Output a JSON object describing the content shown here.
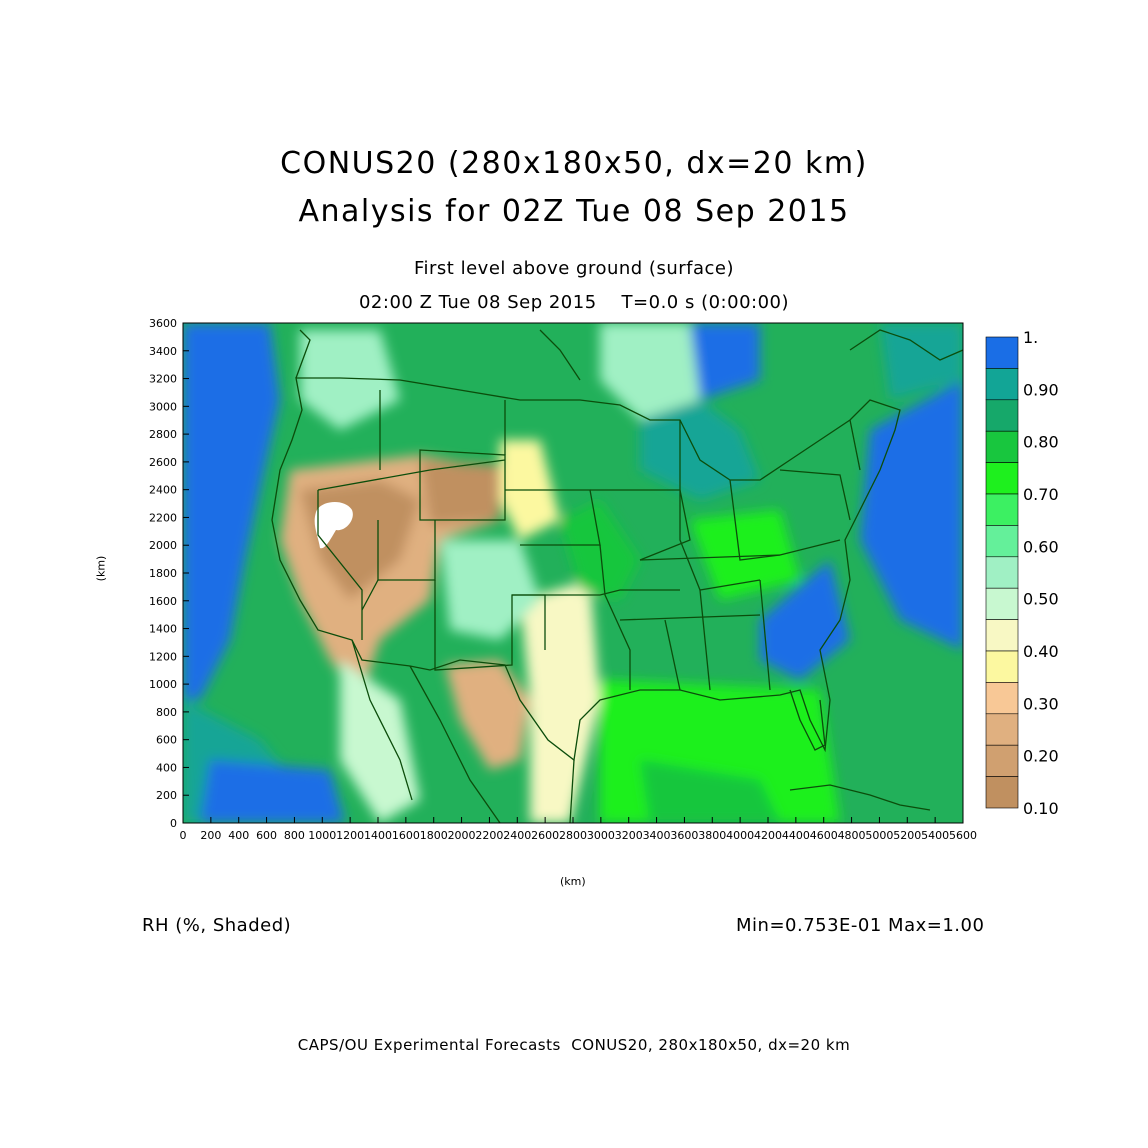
{
  "header": {
    "title_line1": "CONUS20 (280x180x50, dx=20 km)",
    "title_line2": "Analysis for 02Z Tue 08 Sep 2015",
    "subtitle_line1": "First level above ground (surface)",
    "subtitle_line2": "02:00 Z Tue 08 Sep 2015    T=0.0 s (0:00:00)"
  },
  "field_label": "RH (%, Shaded)",
  "stats_label": "Min=0.753E-01 Max=1.00",
  "footer": "CAPS/OU Experimental Forecasts  CONUS20, 280x180x50, dx=20 km",
  "axes": {
    "x_unit": "(km)",
    "y_unit": "(km)",
    "x_ticks": [
      "0",
      "200",
      "400",
      "600",
      "800",
      "1000",
      "1200",
      "1400",
      "1600",
      "1800",
      "2000",
      "2200",
      "2400",
      "2600",
      "2800",
      "3000",
      "3200",
      "3400",
      "3600",
      "3800",
      "4000",
      "4200",
      "4400",
      "4600",
      "4800",
      "5000",
      "5200",
      "5400",
      "5600"
    ],
    "y_ticks": [
      "0",
      "200",
      "400",
      "600",
      "800",
      "1000",
      "1200",
      "1400",
      "1600",
      "1800",
      "2000",
      "2200",
      "2400",
      "2600",
      "2800",
      "3000",
      "3200",
      "3400",
      "3600"
    ],
    "x_range": [
      0,
      5600
    ],
    "y_range": [
      0,
      3600
    ]
  },
  "colorbar": {
    "labels": [
      "1.",
      "0.90",
      "0.80",
      "0.70",
      "0.60",
      "0.50",
      "0.40",
      "0.30",
      "0.20",
      "0.10"
    ],
    "colors": [
      "#1a6ee6",
      "#12a596",
      "#16a86a",
      "#18c63e",
      "#1ef01e",
      "#3cf062",
      "#64f09a",
      "#a0f0c4",
      "#c8f8d0",
      "#f8f8c4",
      "#fcf8a0",
      "#f8c896",
      "#e0b080",
      "#d0a070",
      "#c09060"
    ]
  }
}
